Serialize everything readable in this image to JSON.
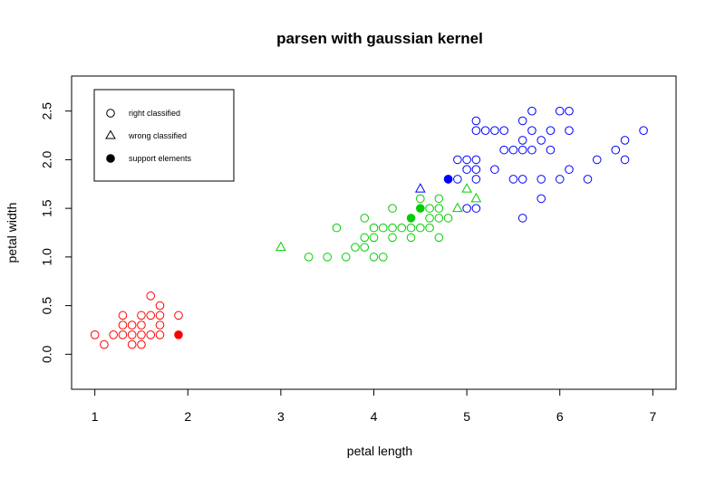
{
  "chart_data": {
    "type": "scatter",
    "title": "parsen with gaussian kernel",
    "xlabel": "petal length",
    "ylabel": "petal width",
    "xlim": [
      0.75,
      7.25
    ],
    "ylim": [
      -0.36,
      2.86
    ],
    "x_ticks": [
      1,
      2,
      3,
      4,
      5,
      6,
      7
    ],
    "y_ticks": [
      0.0,
      0.5,
      1.0,
      1.5,
      2.0,
      2.5
    ],
    "y_tick_labels": [
      "0.0",
      "0.5",
      "1.0",
      "1.5",
      "2.0",
      "2.5"
    ],
    "grid": false,
    "legend": {
      "position": "top-left",
      "entries": [
        {
          "label": "right classified",
          "marker": "open-circle"
        },
        {
          "label": "wrong classified",
          "marker": "open-triangle"
        },
        {
          "label": "support elements",
          "marker": "filled-circle"
        }
      ]
    },
    "class_colors": {
      "red": "#ff0000",
      "green": "#00cd00",
      "blue": "#0000ff"
    },
    "series": [
      {
        "color": "red",
        "right_classified": [
          [
            1.0,
            0.2
          ],
          [
            1.1,
            0.1
          ],
          [
            1.2,
            0.2
          ],
          [
            1.3,
            0.2
          ],
          [
            1.3,
            0.3
          ],
          [
            1.3,
            0.4
          ],
          [
            1.4,
            0.1
          ],
          [
            1.4,
            0.2
          ],
          [
            1.4,
            0.3
          ],
          [
            1.5,
            0.1
          ],
          [
            1.5,
            0.2
          ],
          [
            1.5,
            0.3
          ],
          [
            1.5,
            0.4
          ],
          [
            1.6,
            0.2
          ],
          [
            1.6,
            0.4
          ],
          [
            1.6,
            0.6
          ],
          [
            1.7,
            0.2
          ],
          [
            1.7,
            0.3
          ],
          [
            1.7,
            0.4
          ],
          [
            1.7,
            0.5
          ],
          [
            1.9,
            0.4
          ]
        ],
        "wrong_classified": [],
        "support_elements": [
          [
            1.9,
            0.2
          ]
        ]
      },
      {
        "color": "green",
        "right_classified": [
          [
            3.3,
            1.0
          ],
          [
            3.5,
            1.0
          ],
          [
            3.6,
            1.3
          ],
          [
            3.7,
            1.0
          ],
          [
            3.8,
            1.1
          ],
          [
            3.9,
            1.1
          ],
          [
            3.9,
            1.2
          ],
          [
            3.9,
            1.4
          ],
          [
            4.0,
            1.0
          ],
          [
            4.0,
            1.2
          ],
          [
            4.0,
            1.3
          ],
          [
            4.1,
            1.0
          ],
          [
            4.1,
            1.3
          ],
          [
            4.2,
            1.2
          ],
          [
            4.2,
            1.3
          ],
          [
            4.2,
            1.5
          ],
          [
            4.3,
            1.3
          ],
          [
            4.4,
            1.2
          ],
          [
            4.4,
            1.3
          ],
          [
            4.5,
            1.3
          ],
          [
            4.5,
            1.6
          ],
          [
            4.6,
            1.3
          ],
          [
            4.6,
            1.4
          ],
          [
            4.6,
            1.5
          ],
          [
            4.7,
            1.2
          ],
          [
            4.7,
            1.4
          ],
          [
            4.7,
            1.5
          ],
          [
            4.7,
            1.6
          ],
          [
            4.8,
            1.4
          ]
        ],
        "wrong_classified": [
          [
            3.0,
            1.1
          ],
          [
            4.9,
            1.5
          ],
          [
            5.0,
            1.7
          ],
          [
            5.1,
            1.6
          ]
        ],
        "support_elements": [
          [
            4.4,
            1.4
          ],
          [
            4.5,
            1.5
          ]
        ]
      },
      {
        "color": "blue",
        "right_classified": [
          [
            4.8,
            1.8
          ],
          [
            4.9,
            1.8
          ],
          [
            4.9,
            2.0
          ],
          [
            5.0,
            1.5
          ],
          [
            5.0,
            1.9
          ],
          [
            5.0,
            2.0
          ],
          [
            5.1,
            1.5
          ],
          [
            5.1,
            1.8
          ],
          [
            5.1,
            1.9
          ],
          [
            5.1,
            2.0
          ],
          [
            5.1,
            2.3
          ],
          [
            5.1,
            2.4
          ],
          [
            5.2,
            2.3
          ],
          [
            5.3,
            1.9
          ],
          [
            5.3,
            2.3
          ],
          [
            5.4,
            2.1
          ],
          [
            5.4,
            2.3
          ],
          [
            5.5,
            1.8
          ],
          [
            5.5,
            2.1
          ],
          [
            5.6,
            1.4
          ],
          [
            5.6,
            1.8
          ],
          [
            5.6,
            2.1
          ],
          [
            5.6,
            2.2
          ],
          [
            5.6,
            2.4
          ],
          [
            5.7,
            2.1
          ],
          [
            5.7,
            2.3
          ],
          [
            5.7,
            2.5
          ],
          [
            5.8,
            1.6
          ],
          [
            5.8,
            1.8
          ],
          [
            5.8,
            2.2
          ],
          [
            5.9,
            2.1
          ],
          [
            5.9,
            2.3
          ],
          [
            6.0,
            1.8
          ],
          [
            6.0,
            2.5
          ],
          [
            6.1,
            1.9
          ],
          [
            6.1,
            2.3
          ],
          [
            6.1,
            2.5
          ],
          [
            6.3,
            1.8
          ],
          [
            6.4,
            2.0
          ],
          [
            6.6,
            2.1
          ],
          [
            6.7,
            2.0
          ],
          [
            6.7,
            2.2
          ],
          [
            6.9,
            2.3
          ]
        ],
        "wrong_classified": [
          [
            4.5,
            1.7
          ]
        ],
        "support_elements": [
          [
            4.8,
            1.8
          ]
        ]
      }
    ]
  }
}
